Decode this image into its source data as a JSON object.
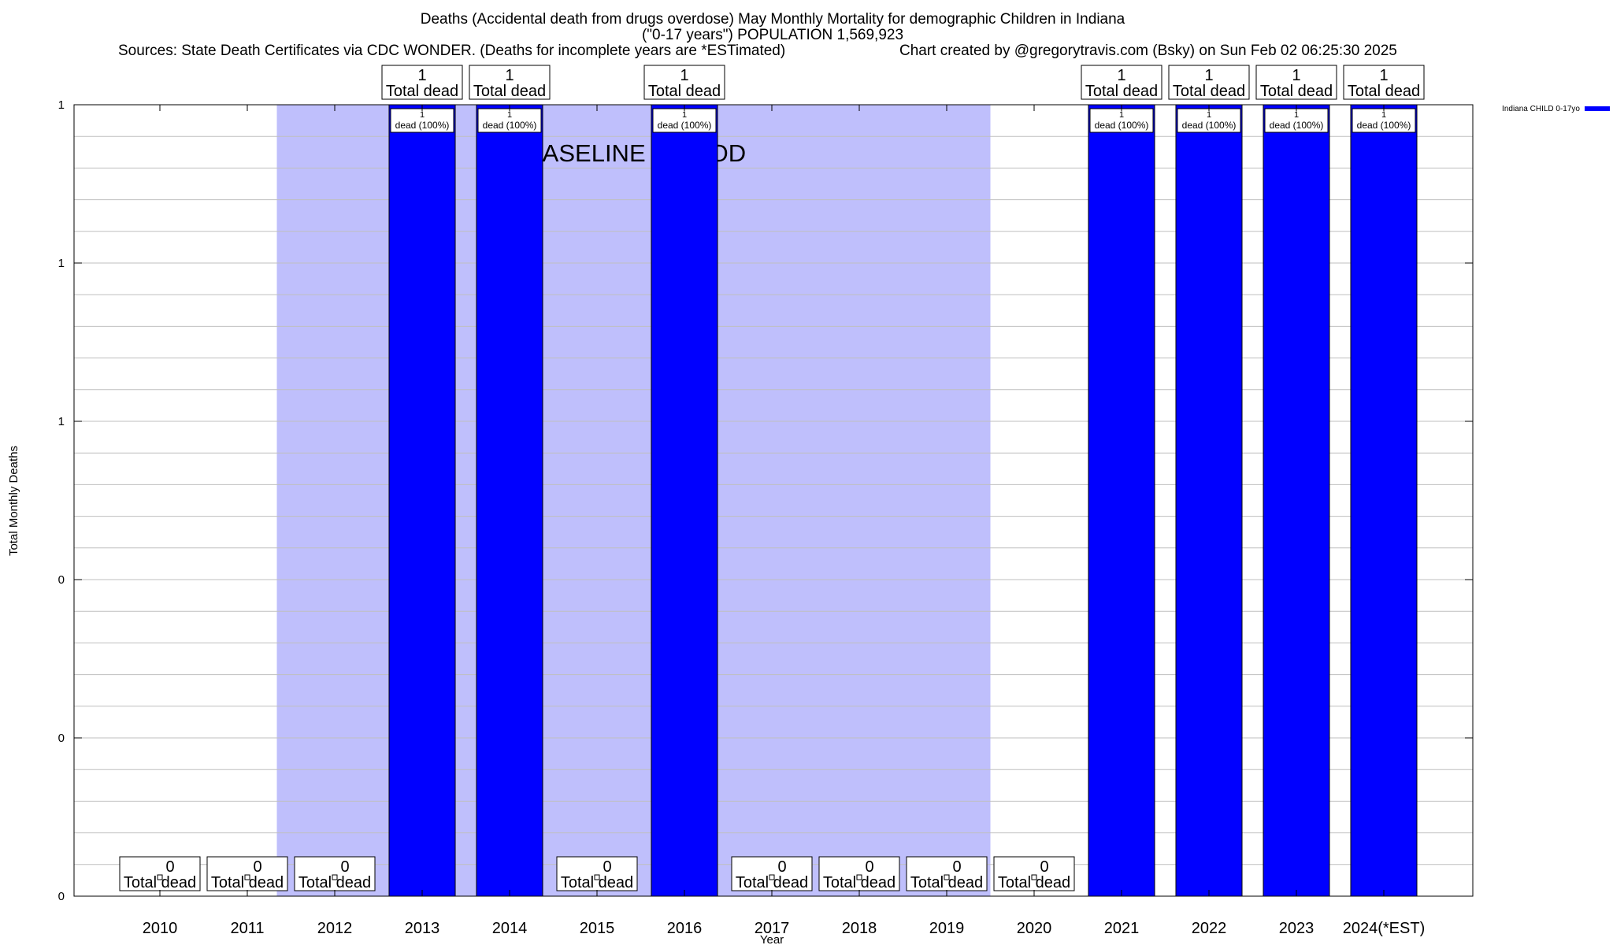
{
  "title_lines": [
    "Deaths (Accidental death from drugs overdose) May Monthly Mortality for demographic Children in Indiana",
    "(\"0-17 years\") POPULATION 1,569,923"
  ],
  "sources": "Sources: State Death Certificates via CDC WONDER. (Deaths for incomplete years are *ESTimated)",
  "credit": "Chart created by @gregorytravis.com (Bsky) on Sun Feb 02 06:25:30 2025",
  "legend": {
    "label": "Indiana CHILD 0-17yo",
    "color": "#0000ff"
  },
  "baseline_label": "BASELINE PERIOD",
  "colors": {
    "bar": "#0000ff",
    "baseline": "#bfbffc",
    "grid": "#bfbfbf"
  },
  "chart_data": {
    "type": "bar",
    "xlabel": "Year",
    "ylabel": "Total Monthly Deaths",
    "ylim": [
      0,
      1
    ],
    "ytick_labels": [
      "0",
      "0",
      "0",
      "1",
      "1",
      "1"
    ],
    "categories": [
      "2010",
      "2011",
      "2012",
      "2013",
      "2014",
      "2015",
      "2016",
      "2017",
      "2018",
      "2019",
      "2020",
      "2021",
      "2022",
      "2023",
      "2024(*EST)"
    ],
    "series": [
      {
        "name": "Indiana CHILD 0-17yo",
        "values": [
          0,
          0,
          0,
          1,
          1,
          0,
          1,
          0,
          0,
          0,
          0,
          1,
          1,
          1,
          1
        ]
      }
    ],
    "baseline_period": [
      "2012",
      "2019"
    ],
    "total_label_suffix": "Total dead",
    "bar_label_suffix": "dead (100%)"
  }
}
